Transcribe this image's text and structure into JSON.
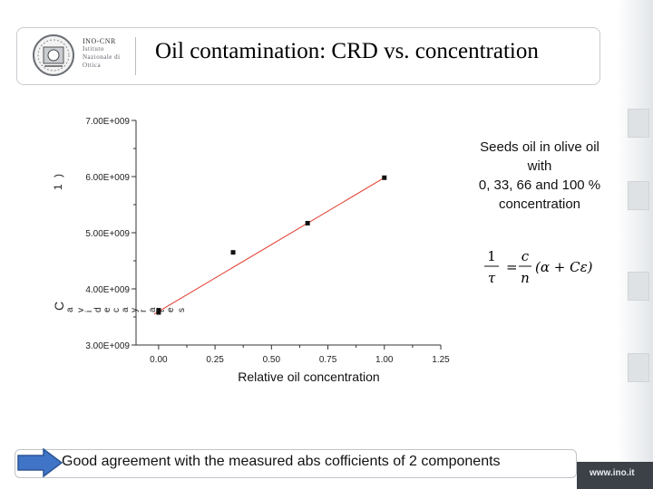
{
  "header": {
    "org_line1": "INO-CNR",
    "org_line2": "Istituto",
    "org_line3": "Nazionale di",
    "org_line4": "Ottica",
    "title": "Oil contamination: CRD vs. concentration"
  },
  "description": {
    "line1": "Seeds oil in olive oil",
    "line2": "with",
    "line3": "0, 33, 66 and 100 %",
    "line4": "concentration"
  },
  "formula": {
    "lhs_num": "1",
    "lhs_den": "τ",
    "rhs_num": "c",
    "rhs_den": "n",
    "expr": "(α + Cε)"
  },
  "chart_data": {
    "type": "scatter",
    "title": "",
    "xlabel": "Relative oil concentration",
    "ylabel_fragments": [
      "C",
      "a",
      "v",
      "i",
      "d",
      "e",
      "c",
      "a",
      "y",
      "r",
      "a",
      "t",
      "e",
      "s",
      "1",
      ")"
    ],
    "xlim": [
      -0.1,
      1.25
    ],
    "ylim": [
      3000000000.0,
      7000000000.0
    ],
    "x_ticks": [
      0.0,
      0.25,
      0.5,
      0.75,
      1.0,
      1.25
    ],
    "x_tick_labels": [
      "0.00",
      "0.25",
      "0.50",
      "0.75",
      "1.00",
      "1.25"
    ],
    "y_ticks": [
      3000000000.0,
      4000000000.0,
      5000000000.0,
      6000000000.0,
      7000000000.0
    ],
    "y_tick_labels": [
      "3.00E+009",
      "4.00E+009",
      "5.00E+009",
      "6.00E+009",
      "7.00E+009"
    ],
    "series": [
      {
        "x": [
          0.0,
          0.0,
          0.33,
          0.66,
          1.0
        ],
        "y": [
          3620000000.0,
          3580000000.0,
          4650000000.0,
          5170000000.0,
          5980000000.0
        ]
      }
    ],
    "fit_line": {
      "x": [
        -0.02,
        1.0
      ],
      "y": [
        3550000000.0,
        5980000000.0
      ]
    },
    "grid": false,
    "colors": {
      "points": "#111111",
      "fit": "#e23b2e",
      "axis": "#333333"
    }
  },
  "footer": {
    "note": "Good agreement with the measured abs cofficients of  2 components",
    "website": "www.ino.it"
  }
}
